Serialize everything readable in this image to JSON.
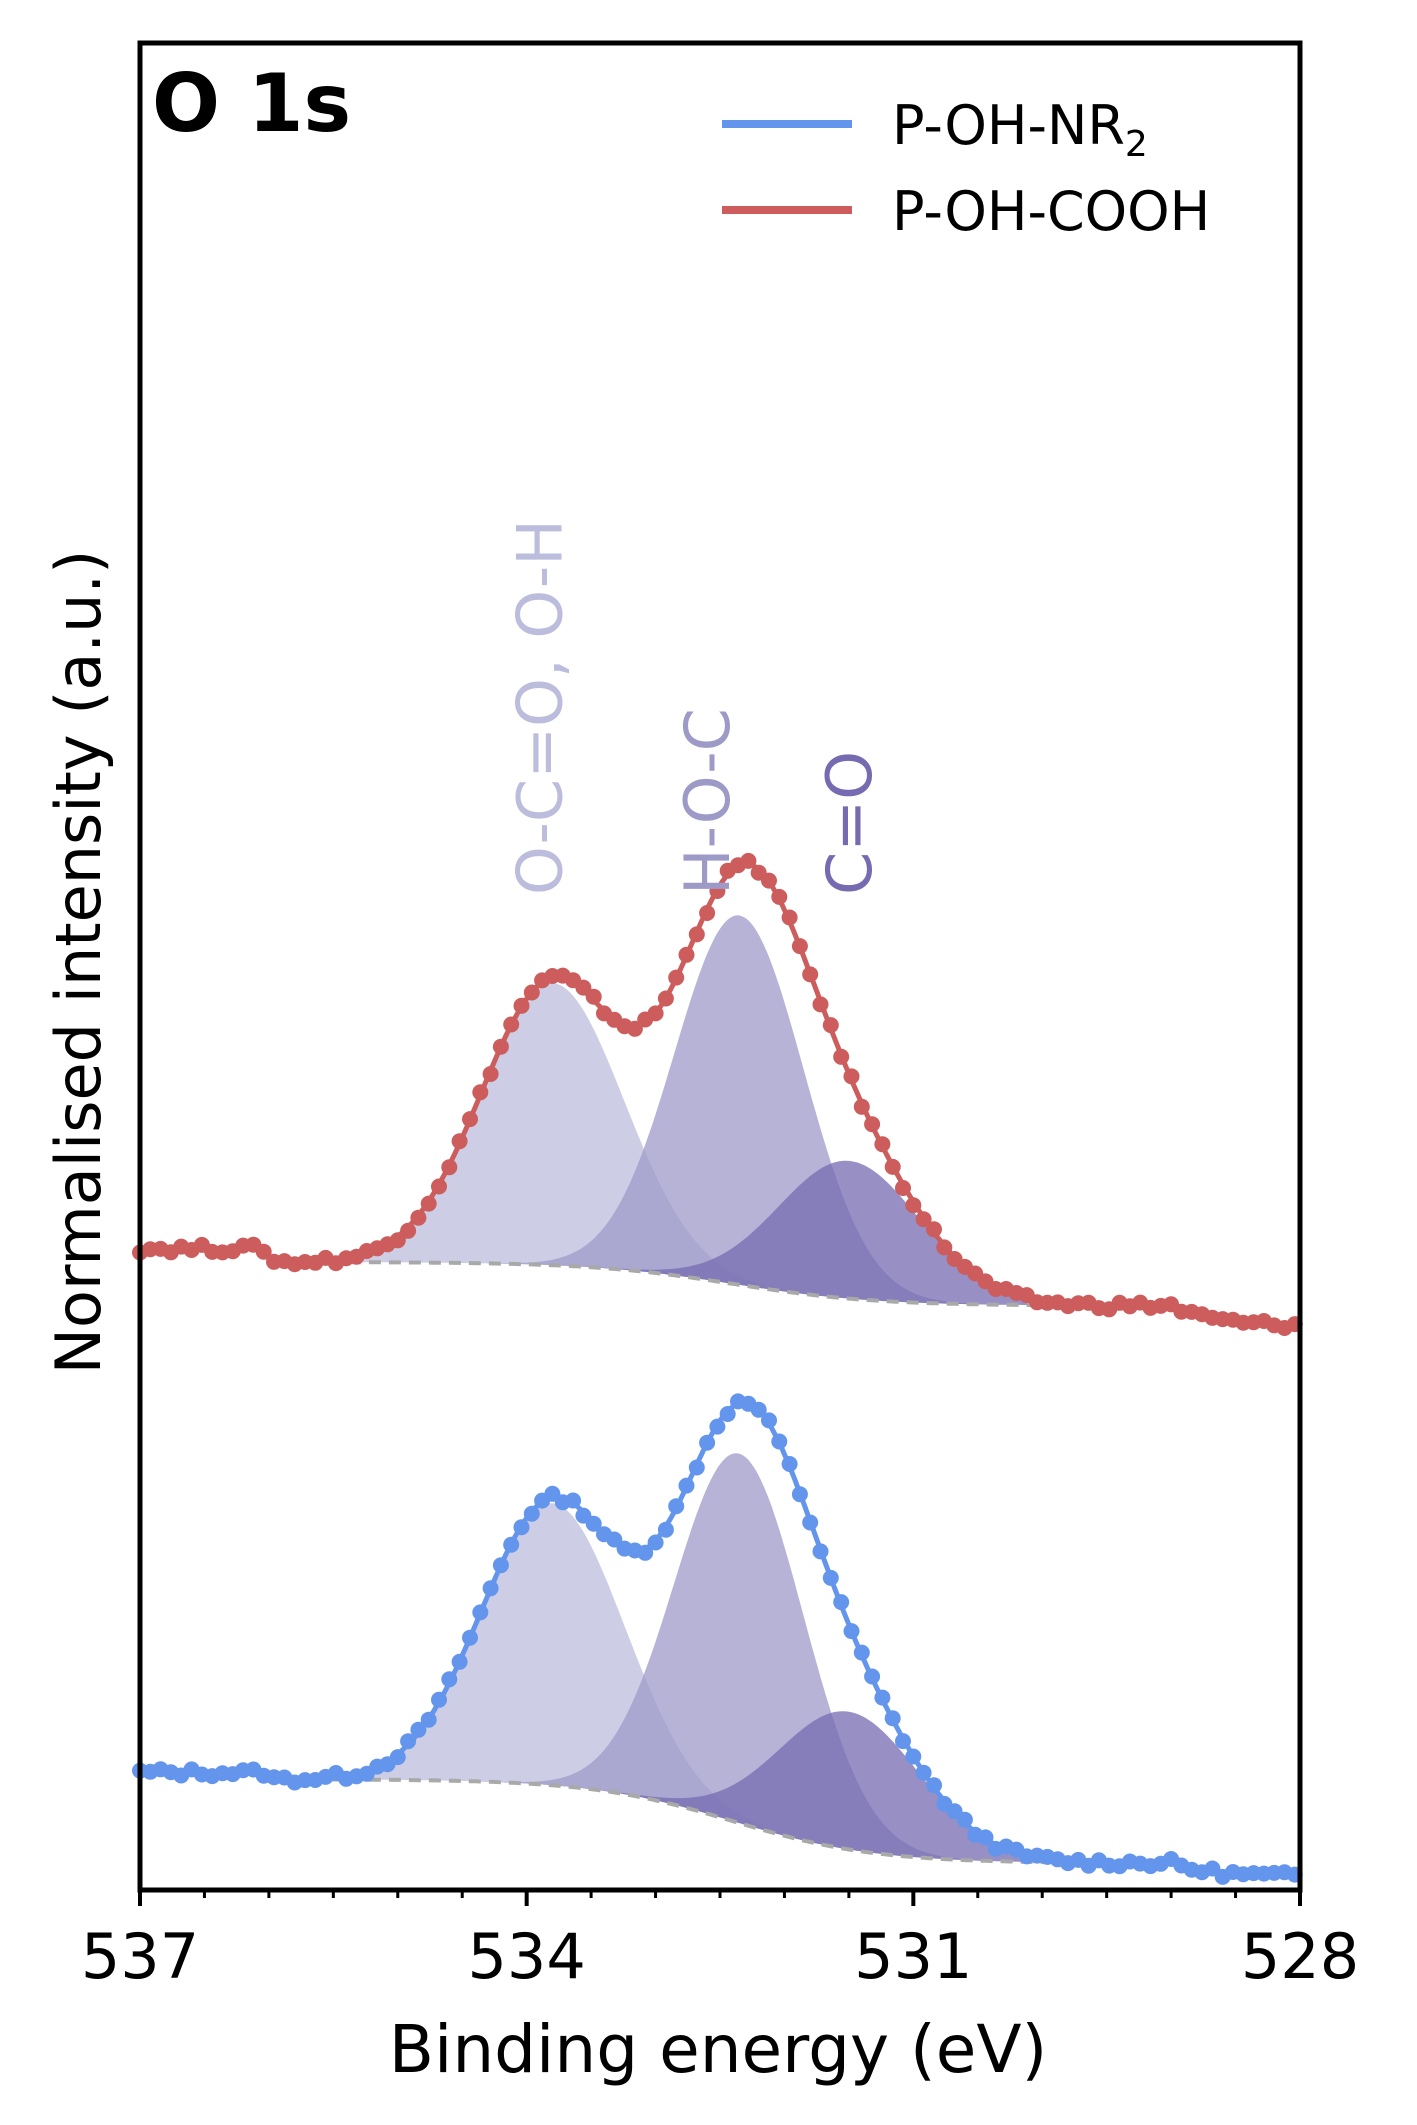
{
  "chart_data": {
    "type": "line",
    "panel_label": "O 1s",
    "xlabel": "Binding energy (eV)",
    "ylabel": "Normalised intensity (a.u.)",
    "xlim": [
      537,
      528
    ],
    "ylim": [
      0,
      2.75
    ],
    "x_ticks": [
      "537",
      "534",
      "531",
      "528"
    ],
    "grid": false,
    "legend_position": "top-right",
    "peak_labels": [
      {
        "text": "O-C=O, O-H",
        "x": 533.9,
        "color": "#bcbddc"
      },
      {
        "text": "H-O-C",
        "x": 532.6,
        "color": "#9e9ac8"
      },
      {
        "text": "C=O",
        "x": 531.5,
        "color": "#756bb1"
      }
    ],
    "components": [
      {
        "name": "O-C=O, O-H",
        "center": 533.8,
        "sigma": 0.55,
        "color": "#bcbddc"
      },
      {
        "name": "H-O-C",
        "center": 532.35,
        "sigma": 0.5,
        "color": "#9e9ac8"
      },
      {
        "name": "C=O",
        "center": 531.5,
        "sigma": 0.55,
        "color": "#756bb1"
      }
    ],
    "fit_range": [
      536.0,
      529.0
    ],
    "series": [
      {
        "legend_label": "P-OH-NR",
        "legend_sub": "2",
        "color": "#6495ed",
        "offset": 0.0,
        "baseline_high": 0.165,
        "baseline_low": 0.04,
        "left_level": 0.175,
        "right_level": 0.02,
        "amplitudes": [
          0.42,
          0.55,
          0.205
        ]
      },
      {
        "legend_label": "P-OH-COOH",
        "color": "#cd5c5c",
        "offset": 0.78,
        "baseline_high": 0.155,
        "baseline_low": 0.09,
        "left_level": 0.175,
        "right_level": 0.06,
        "amplitudes": [
          0.42,
          0.55,
          0.205
        ]
      }
    ],
    "baseline_color": "#a9a9a9"
  }
}
